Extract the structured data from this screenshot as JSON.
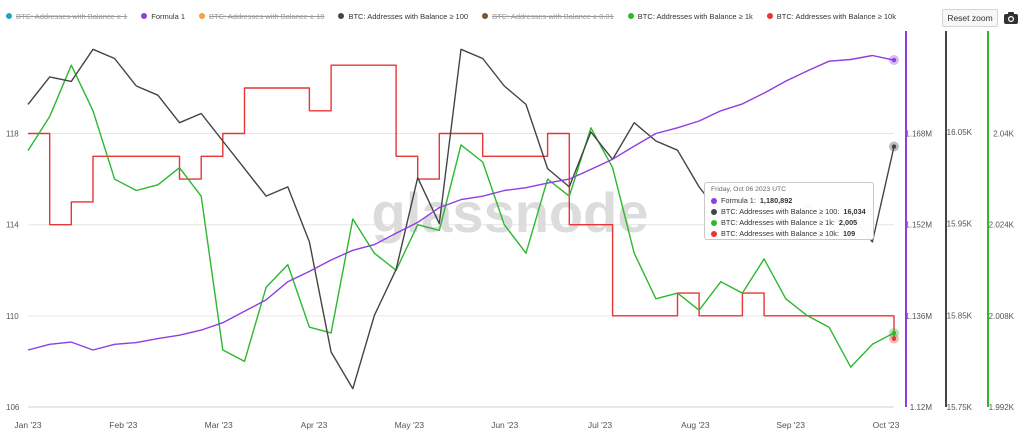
{
  "legend": [
    {
      "label": "BTC: Addresses with Balance ≥ 1",
      "color": "#1aa5c9",
      "active": false
    },
    {
      "label": "Formula 1",
      "color": "#8e3ee0",
      "active": true
    },
    {
      "label": "BTC: Addresses with Balance ≥ 10",
      "color": "#f2a33a",
      "active": false
    },
    {
      "label": "BTC: Addresses with Balance ≥ 100",
      "color": "#444444",
      "active": true
    },
    {
      "label": "BTC: Addresses with Balance ≥ 0.01",
      "color": "#7a5230",
      "active": false
    },
    {
      "label": "BTC: Addresses with Balance ≥ 1k",
      "color": "#2db82d",
      "active": true
    },
    {
      "label": "BTC: Addresses with Balance ≥ 10k",
      "color": "#e83535",
      "active": true
    }
  ],
  "toolbar": {
    "reset_zoom": "Reset zoom",
    "camera_icon": "camera-icon"
  },
  "watermark": "glassnode",
  "tooltip": {
    "date": "Friday, Oct 06 2023 UTC",
    "rows": [
      {
        "label": "Formula 1: ",
        "value": "1,180,892",
        "color": "#8e3ee0"
      },
      {
        "label": "BTC: Addresses with Balance ≥ 100: ",
        "value": "16,034",
        "color": "#444444"
      },
      {
        "label": "BTC: Addresses with Balance ≥ 1k: ",
        "value": "2,005",
        "color": "#2db82d"
      },
      {
        "label": "BTC: Addresses with Balance ≥ 10k: ",
        "value": "109",
        "color": "#e83535"
      }
    ]
  },
  "chart_data": {
    "type": "line",
    "x_labels": [
      "Jan '23",
      "Feb '23",
      "Mar '23",
      "Apr '23",
      "May '23",
      "Jun '23",
      "Jul '23",
      "Aug '23",
      "Sep '23",
      "Oct '23"
    ],
    "axes": {
      "left": {
        "name": "balance_10k",
        "ticks": [
          "106",
          "110",
          "114",
          "118"
        ],
        "range": [
          106,
          122.5
        ]
      },
      "formula": {
        "name": "formula_1",
        "ticks": [
          "1.12M",
          "1.136M",
          "1.152M",
          "1.168M"
        ],
        "range": [
          1120000,
          1186000
        ]
      },
      "hundred": {
        "name": "balance_100",
        "ticks": [
          "15.75K",
          "15.85K",
          "15.95K",
          "16.05K"
        ],
        "range": [
          15750,
          16160
        ]
      },
      "thousand": {
        "name": "balance_1k",
        "ticks": [
          "1.992K",
          "2.008K",
          "2.024K",
          "2.04K"
        ],
        "range": [
          1992,
          2058
        ]
      }
    },
    "series": [
      {
        "name": "Formula 1",
        "color": "#8e3ee0",
        "axis": "formula",
        "values": [
          1130000,
          1131000,
          1131400,
          1130000,
          1131000,
          1131300,
          1132000,
          1132600,
          1133500,
          1134800,
          1136800,
          1138800,
          1142000,
          1143800,
          1145800,
          1147500,
          1148500,
          1150500,
          1152400,
          1155000,
          1156400,
          1157000,
          1158000,
          1158500,
          1159300,
          1160000,
          1161700,
          1163500,
          1165800,
          1168000,
          1169000,
          1170200,
          1172000,
          1173200,
          1175100,
          1177200,
          1179000,
          1180700,
          1181000,
          1181700,
          1180900
        ]
      },
      {
        "name": "BTC: Addresses with Balance ≥ 100",
        "color": "#444444",
        "axis": "hundred",
        "values": [
          16080,
          16110,
          16105,
          16140,
          16130,
          16100,
          16090,
          16060,
          16070,
          16040,
          16010,
          15980,
          15990,
          15930,
          15810,
          15770,
          15850,
          15900,
          16000,
          15950,
          16140,
          16130,
          16100,
          16080,
          16010,
          15990,
          16050,
          16020,
          16060,
          16040,
          16030,
          15990,
          15960,
          15950,
          15960,
          15950,
          15970,
          15950,
          15960,
          15930,
          16034
        ]
      },
      {
        "name": "BTC: Addresses with Balance ≥ 1k",
        "color": "#2db82d",
        "axis": "thousand",
        "values": [
          2037,
          2043,
          2052,
          2044,
          2032,
          2030,
          2031,
          2034,
          2029,
          2002,
          2000,
          2013,
          2017,
          2006,
          2005,
          2025,
          2019,
          2016,
          2024,
          2023,
          2038,
          2035,
          2024,
          2019,
          2032,
          2029,
          2041,
          2034,
          2019,
          2011,
          2012,
          2009,
          2014,
          2012,
          2018,
          2011,
          2008,
          2006,
          1999,
          2003,
          2005
        ]
      },
      {
        "name": "BTC: Addresses with Balance ≥ 10k",
        "color": "#e83535",
        "axis": "left",
        "values": [
          118,
          114,
          115,
          117,
          117,
          117,
          117,
          116,
          117,
          118,
          120,
          120,
          120,
          119,
          121,
          121,
          121,
          117,
          116,
          118,
          118,
          117,
          117,
          117,
          118,
          114,
          114,
          110,
          110,
          110,
          111,
          110,
          110,
          111,
          110,
          110,
          110,
          110,
          110,
          110,
          109
        ]
      }
    ]
  }
}
